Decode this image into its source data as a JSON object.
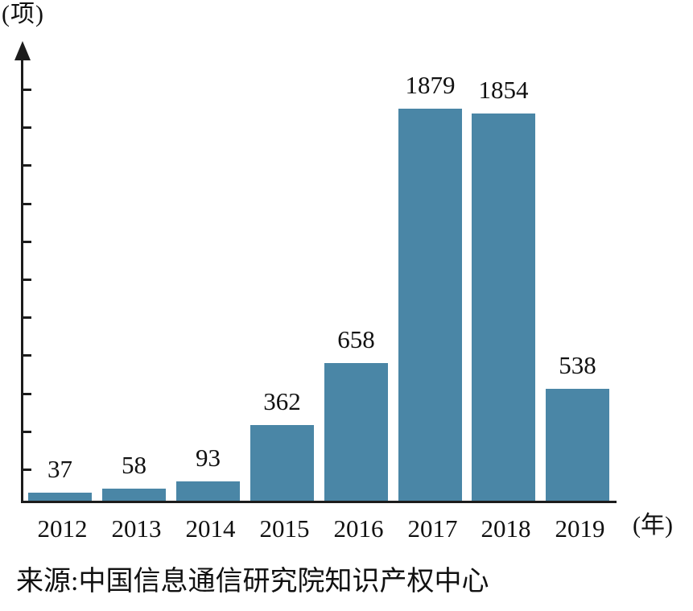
{
  "chart_data": {
    "type": "bar",
    "title": "",
    "categories": [
      "2012",
      "2013",
      "2014",
      "2015",
      "2016",
      "2017",
      "2018",
      "2019"
    ],
    "values": [
      37,
      58,
      93,
      362,
      658,
      1879,
      1854,
      538
    ],
    "xlabel": "(年)",
    "ylabel": "(项)",
    "source": "来源:中国信息通信研究院知识产权中心",
    "bar_color": "#4A86A6",
    "axis_color": "#1C1C1C",
    "text_color": "#111111",
    "background": "#FFFFFF",
    "ylim": [
      0,
      2100
    ],
    "y_ticks_labeled": false,
    "y_tick_count": 11,
    "grid": false,
    "legend": false,
    "data_labels_shown": true
  }
}
